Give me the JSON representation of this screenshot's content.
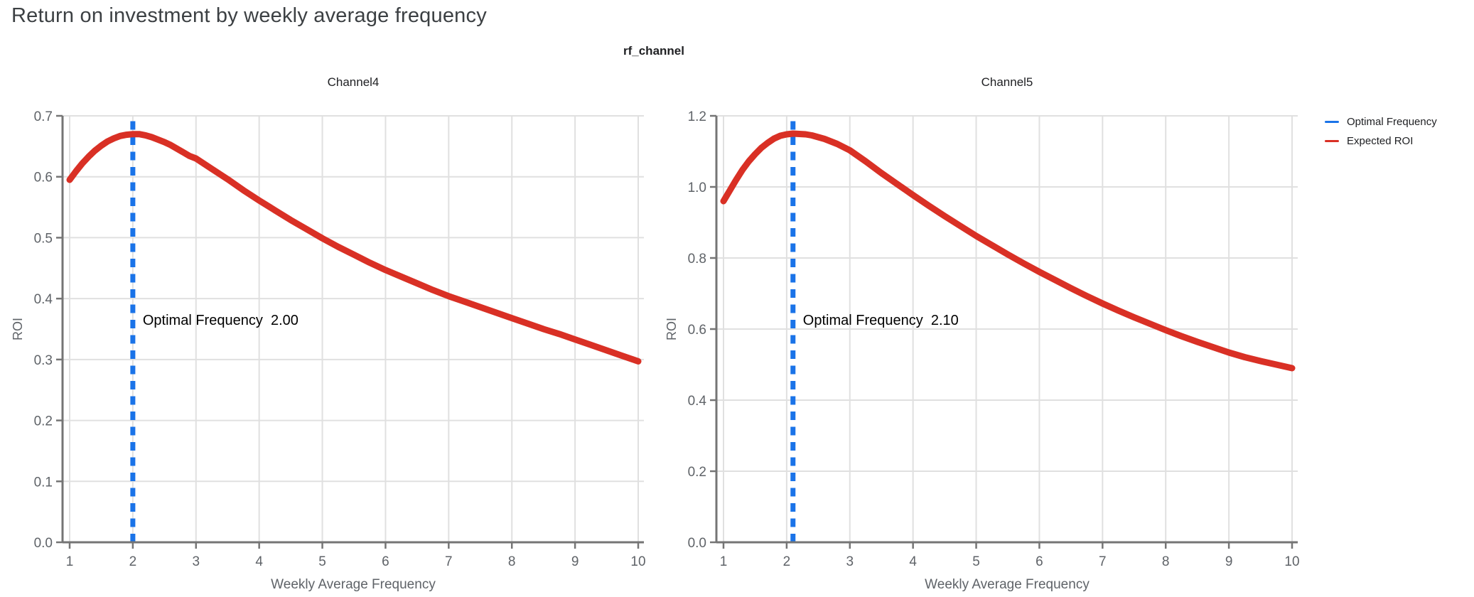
{
  "page": {
    "title": "Return on investment by weekly average frequency",
    "subtitle": "rf_channel"
  },
  "legend": {
    "position": "right",
    "items": [
      {
        "label": "Optimal Frequency",
        "color": "#1a73e8"
      },
      {
        "label": "Expected ROI",
        "color": "#d93025"
      }
    ]
  },
  "colors": {
    "expected_roi_line": "#d93025",
    "optimal_frequency_line": "#1a73e8",
    "grid_line": "#e0e0e0",
    "axis_line": "#757575",
    "tick_label": "#5f6368",
    "axis_title": "#5f6368",
    "chart_title": "#202124",
    "annotation_text": "#000000",
    "page_title": "#3c4043"
  },
  "chart_data": [
    {
      "type": "line",
      "title": "Channel4",
      "xlabel": "Weekly Average Frequency",
      "ylabel": "ROI",
      "xlim": [
        1,
        10
      ],
      "ylim": [
        0.0,
        0.7
      ],
      "grid": true,
      "xticks": [
        1,
        2,
        3,
        4,
        5,
        6,
        7,
        8,
        9,
        10
      ],
      "xtick_labels": [
        "1",
        "2",
        "3",
        "4",
        "5",
        "6",
        "7",
        "8",
        "9",
        "10"
      ],
      "yticks": [
        0.0,
        0.1,
        0.2,
        0.3,
        0.4,
        0.5,
        0.6,
        0.7
      ],
      "ytick_labels": [
        "0.0",
        "0.1",
        "0.2",
        "0.3",
        "0.4",
        "0.5",
        "0.6",
        "0.7"
      ],
      "optimal_frequency": {
        "value": 2.0,
        "label": "Optimal Frequency",
        "display_value": "2.00"
      },
      "series": [
        {
          "name": "Expected ROI",
          "x": [
            1,
            1.1,
            1.2,
            1.3,
            1.4,
            1.5,
            1.6,
            1.7,
            1.8,
            1.9,
            2,
            2.1,
            2.2,
            2.3,
            2.4,
            2.5,
            2.6,
            2.7,
            2.8,
            2.9,
            3,
            3.25,
            3.5,
            3.75,
            4,
            4.25,
            4.5,
            4.75,
            5,
            5.25,
            5.5,
            5.75,
            6,
            6.25,
            6.5,
            6.75,
            7,
            7.25,
            7.5,
            7.75,
            8,
            8.25,
            8.5,
            8.75,
            9,
            9.25,
            9.5,
            9.75,
            10
          ],
          "y": [
            0.595,
            0.609,
            0.622,
            0.633,
            0.643,
            0.651,
            0.658,
            0.663,
            0.667,
            0.669,
            0.67,
            0.67,
            0.668,
            0.665,
            0.661,
            0.657,
            0.652,
            0.646,
            0.64,
            0.634,
            0.63,
            0.613,
            0.596,
            0.578,
            0.561,
            0.545,
            0.529,
            0.514,
            0.499,
            0.485,
            0.472,
            0.459,
            0.447,
            0.436,
            0.425,
            0.414,
            0.404,
            0.395,
            0.386,
            0.377,
            0.368,
            0.359,
            0.35,
            0.342,
            0.333,
            0.324,
            0.315,
            0.306,
            0.297
          ]
        },
        {
          "name": "Optimal Frequency",
          "style": "dashed-vertical",
          "x": 2.0
        }
      ]
    },
    {
      "type": "line",
      "title": "Channel5",
      "xlabel": "Weekly Average Frequency",
      "ylabel": "ROI",
      "xlim": [
        1,
        10
      ],
      "ylim": [
        0.0,
        1.2
      ],
      "grid": true,
      "xticks": [
        1,
        2,
        3,
        4,
        5,
        6,
        7,
        8,
        9,
        10
      ],
      "xtick_labels": [
        "1",
        "2",
        "3",
        "4",
        "5",
        "6",
        "7",
        "8",
        "9",
        "10"
      ],
      "yticks": [
        0.0,
        0.2,
        0.4,
        0.6,
        0.8,
        1.0,
        1.2
      ],
      "ytick_labels": [
        "0.0",
        "0.2",
        "0.4",
        "0.6",
        "0.8",
        "1.0",
        "1.2"
      ],
      "optimal_frequency": {
        "value": 2.1,
        "label": "Optimal Frequency",
        "display_value": "2.10"
      },
      "series": [
        {
          "name": "Expected ROI",
          "x": [
            1,
            1.1,
            1.2,
            1.3,
            1.4,
            1.5,
            1.6,
            1.7,
            1.8,
            1.9,
            2,
            2.1,
            2.2,
            2.3,
            2.4,
            2.5,
            2.6,
            2.7,
            2.8,
            2.9,
            3,
            3.25,
            3.5,
            3.75,
            4,
            4.25,
            4.5,
            4.75,
            5,
            5.25,
            5.5,
            5.75,
            6,
            6.25,
            6.5,
            6.75,
            7,
            7.25,
            7.5,
            7.75,
            8,
            8.25,
            8.5,
            8.75,
            9,
            9.25,
            9.5,
            9.75,
            10
          ],
          "y": [
            0.96,
            0.99,
            1.02,
            1.048,
            1.072,
            1.092,
            1.11,
            1.124,
            1.136,
            1.144,
            1.148,
            1.15,
            1.149,
            1.148,
            1.145,
            1.14,
            1.135,
            1.128,
            1.121,
            1.112,
            1.103,
            1.072,
            1.039,
            1.008,
            0.977,
            0.947,
            0.918,
            0.89,
            0.862,
            0.836,
            0.81,
            0.785,
            0.761,
            0.738,
            0.715,
            0.693,
            0.672,
            0.652,
            0.633,
            0.615,
            0.597,
            0.58,
            0.564,
            0.549,
            0.534,
            0.521,
            0.51,
            0.5,
            0.49
          ]
        },
        {
          "name": "Optimal Frequency",
          "style": "dashed-vertical",
          "x": 2.1
        }
      ]
    }
  ]
}
